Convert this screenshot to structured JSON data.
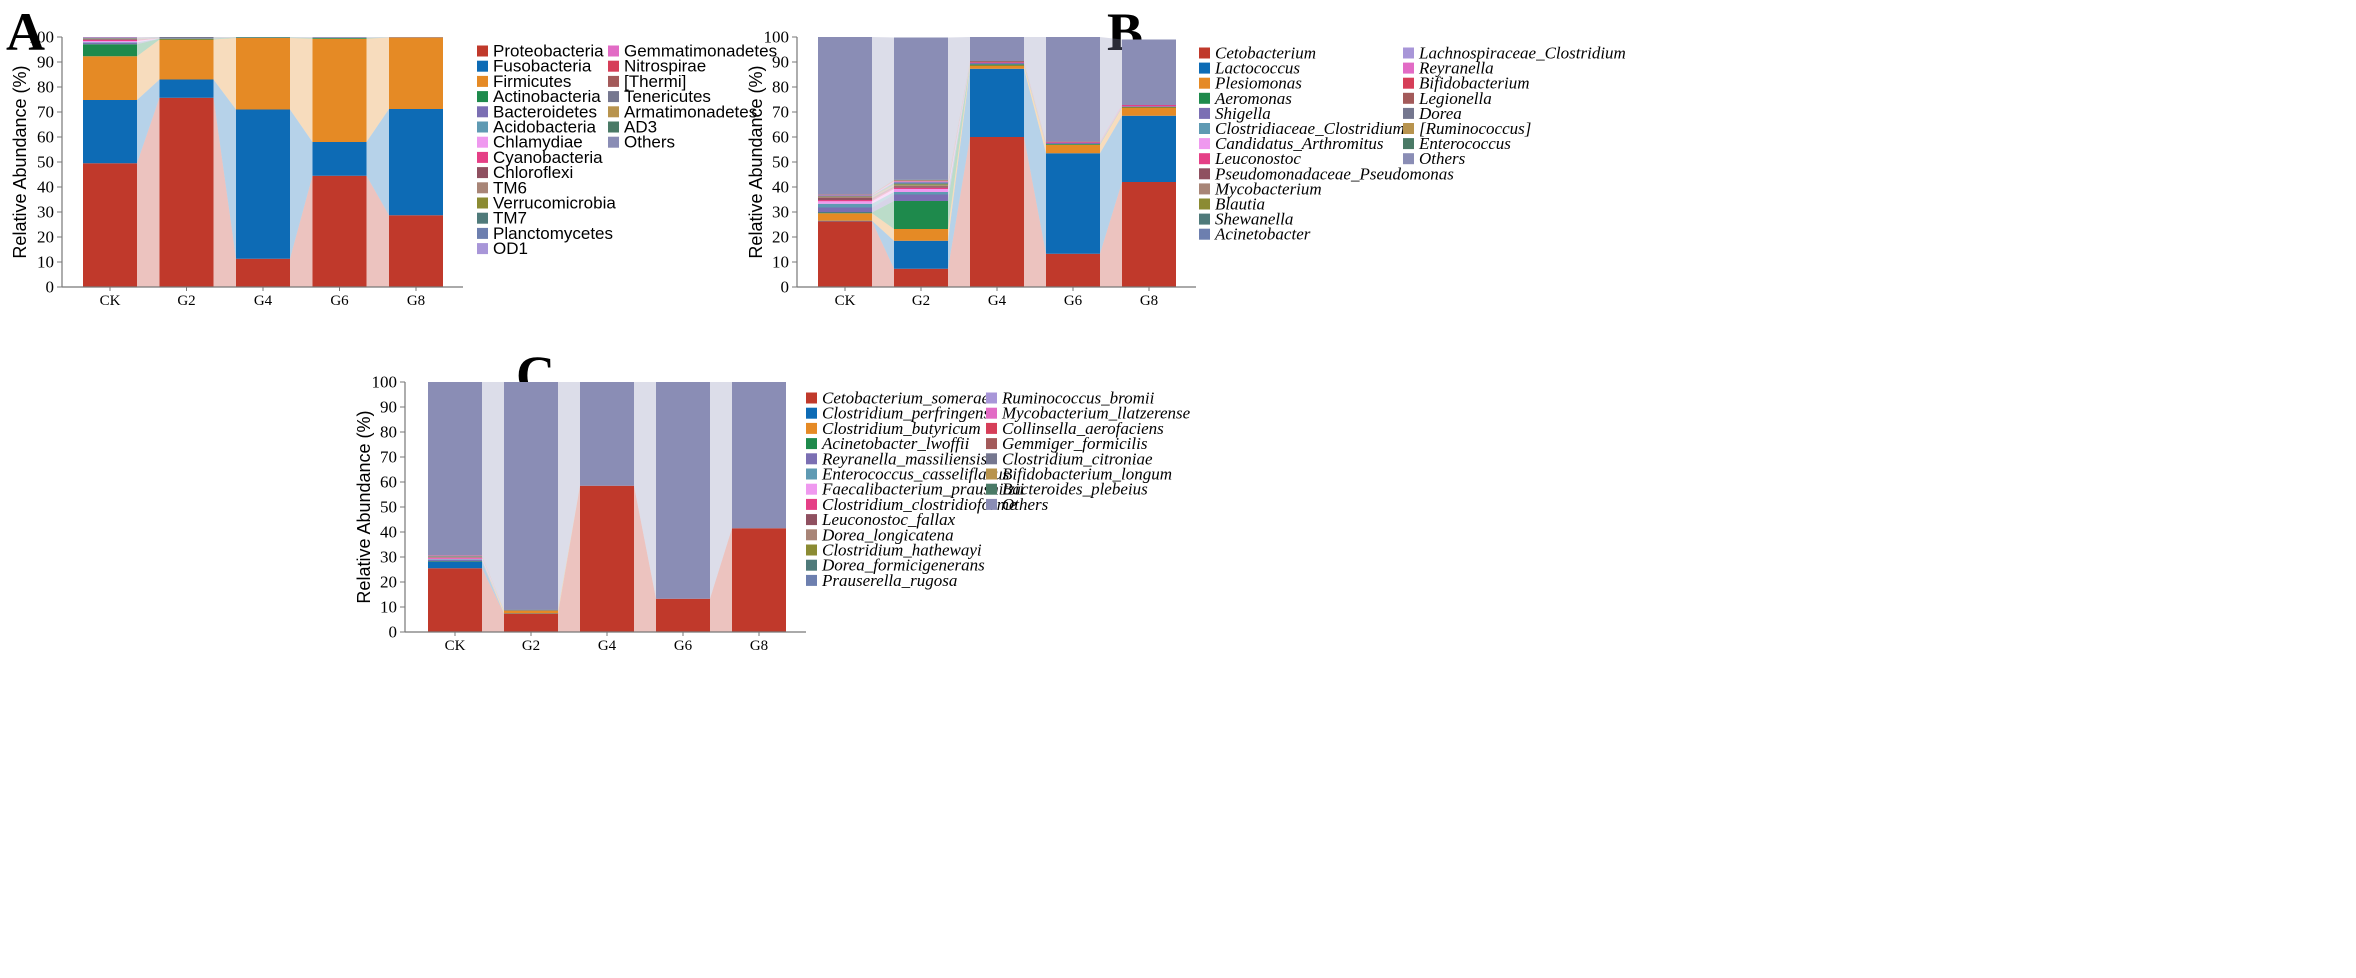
{
  "colors": {
    "palette": [
      "#c0392b",
      "#0d6bb5",
      "#e58a25",
      "#1e8a4c",
      "#7b6fb3",
      "#5f9ab3",
      "#ef99ef",
      "#e53f86",
      "#8f5060",
      "#a88577",
      "#8b8b33",
      "#4f7a7a",
      "#6d7faf",
      "#a896d8",
      "#e26bc5",
      "#d63e58",
      "#a35a5a",
      "#75778f",
      "#b8944e",
      "#4a7a66",
      "#8a8db5"
    ],
    "flow_alpha": 0.3
  },
  "chart_data": [
    {
      "panel": "A",
      "type": "bar",
      "stacked": true,
      "ylabel": "Relative Abundance (%)",
      "ylim": [
        0,
        100
      ],
      "yticks": [
        0,
        10,
        20,
        30,
        40,
        50,
        60,
        70,
        80,
        90,
        100
      ],
      "categories": [
        "CK",
        "G2",
        "G4",
        "G6",
        "G8"
      ],
      "legend_italic": false,
      "legend_columns": 2,
      "series": [
        {
          "name": "Proteobacteria",
          "values": [
            49.5,
            75.7,
            11.3,
            44.5,
            28.7
          ]
        },
        {
          "name": "Fusobacteria",
          "values": [
            25.3,
            7.3,
            59.7,
            13.5,
            42.5
          ]
        },
        {
          "name": "Firmicutes",
          "values": [
            17.5,
            16.0,
            28.6,
            41.3,
            28.6
          ]
        },
        {
          "name": "Actinobacteria",
          "values": [
            4.8,
            0.3,
            0.2,
            0.3,
            0.0
          ]
        },
        {
          "name": "Bacteroidetes",
          "values": [
            0.5,
            0.0,
            0.0,
            0.0,
            0.0
          ]
        },
        {
          "name": "Acidobacteria",
          "values": [
            0.3,
            0.1,
            0.0,
            0.0,
            0.0
          ]
        },
        {
          "name": "Chlamydiae",
          "values": [
            0.5,
            0.0,
            0.0,
            0.0,
            0.0
          ]
        },
        {
          "name": "Cyanobacteria",
          "values": [
            0.4,
            0.0,
            0.0,
            0.0,
            0.0
          ]
        },
        {
          "name": "Chloroflexi",
          "values": [
            0.3,
            0.1,
            0.0,
            0.0,
            0.0
          ]
        },
        {
          "name": "TM6",
          "values": [
            0.2,
            0.0,
            0.0,
            0.0,
            0.0
          ]
        },
        {
          "name": "Verrucomicrobia",
          "values": [
            0.1,
            0.0,
            0.0,
            0.0,
            0.0
          ]
        },
        {
          "name": "TM7",
          "values": [
            0.1,
            0.0,
            0.0,
            0.0,
            0.0
          ]
        },
        {
          "name": "Planctomycetes",
          "values": [
            0.1,
            0.0,
            0.0,
            0.0,
            0.0
          ]
        },
        {
          "name": "OD1",
          "values": [
            0.1,
            0.0,
            0.0,
            0.0,
            0.0
          ]
        },
        {
          "name": "Gemmatimonadetes",
          "values": [
            0.1,
            0.0,
            0.0,
            0.0,
            0.0
          ]
        },
        {
          "name": "Nitrospirae",
          "values": [
            0.0,
            0.0,
            0.0,
            0.0,
            0.0
          ]
        },
        {
          "name": "[Thermi]",
          "values": [
            0.0,
            0.0,
            0.0,
            0.0,
            0.0
          ]
        },
        {
          "name": "Tenericutes",
          "values": [
            0.0,
            0.5,
            0.1,
            0.1,
            0.1
          ]
        },
        {
          "name": "Armatimonadetes",
          "values": [
            0.0,
            0.0,
            0.0,
            0.0,
            0.0
          ]
        },
        {
          "name": "AD3",
          "values": [
            0.0,
            0.0,
            0.0,
            0.0,
            0.0
          ]
        },
        {
          "name": "Others",
          "values": [
            0.2,
            0.0,
            0.1,
            0.3,
            0.1
          ]
        }
      ]
    },
    {
      "panel": "B",
      "type": "bar",
      "stacked": true,
      "ylabel": "Relative Abundance (%)",
      "ylim": [
        0,
        100
      ],
      "yticks": [
        0,
        10,
        20,
        30,
        40,
        50,
        60,
        70,
        80,
        90,
        100
      ],
      "categories": [
        "CK",
        "G2",
        "G4",
        "G6",
        "G8"
      ],
      "legend_italic": true,
      "legend_columns": 2,
      "series": [
        {
          "name": "Cetobacterium",
          "values": [
            26.3,
            7.3,
            60.0,
            13.3,
            42.0
          ]
        },
        {
          "name": "Lactococcus",
          "values": [
            0.2,
            11.2,
            27.3,
            40.2,
            26.5
          ]
        },
        {
          "name": "Plesiomonas",
          "values": [
            3.0,
            4.7,
            1.3,
            3.4,
            3.3
          ]
        },
        {
          "name": "Aeromonas",
          "values": [
            0.3,
            11.2,
            0.5,
            0.3,
            0.2
          ]
        },
        {
          "name": "Shigella",
          "values": [
            2.0,
            2.6,
            0.5,
            0.5,
            0.3
          ]
        },
        {
          "name": "Clostridiaceae_Clostridium",
          "values": [
            1.5,
            1.0,
            0.0,
            0.0,
            0.0
          ]
        },
        {
          "name": "Candidatus_Arthromitus",
          "values": [
            1.0,
            1.2,
            0.0,
            0.0,
            0.0
          ]
        },
        {
          "name": "Leuconostoc",
          "values": [
            0.5,
            0.5,
            0.3,
            0.3,
            0.5
          ]
        },
        {
          "name": "Pseudomonadaceae_Pseudomonas",
          "values": [
            0.8,
            0.5,
            0.3,
            0.1,
            0.0
          ]
        },
        {
          "name": "Mycobacterium",
          "values": [
            0.6,
            0.5,
            0.2,
            0.1,
            0.0
          ]
        },
        {
          "name": "Blautia",
          "values": [
            0.1,
            0.4,
            0.0,
            0.0,
            0.0
          ]
        },
        {
          "name": "Shewanella",
          "values": [
            0.1,
            0.4,
            0.0,
            0.0,
            0.0
          ]
        },
        {
          "name": "Acinetobacter",
          "values": [
            0.2,
            0.3,
            0.0,
            0.0,
            0.0
          ]
        },
        {
          "name": "Lachnospiraceae_Clostridium",
          "values": [
            0.1,
            0.3,
            0.0,
            0.0,
            0.0
          ]
        },
        {
          "name": "Reyranella",
          "values": [
            0.1,
            0.2,
            0.0,
            0.0,
            0.0
          ]
        },
        {
          "name": "Bifidobacterium",
          "values": [
            0.1,
            0.2,
            0.0,
            0.0,
            0.0
          ]
        },
        {
          "name": "Legionella",
          "values": [
            0.1,
            0.1,
            0.0,
            0.0,
            0.0
          ]
        },
        {
          "name": "Dorea",
          "values": [
            0.1,
            0.1,
            0.0,
            0.0,
            0.0
          ]
        },
        {
          "name": "[Ruminococcus]",
          "values": [
            0.0,
            0.1,
            0.0,
            0.0,
            0.0
          ]
        },
        {
          "name": "Enterococcus",
          "values": [
            0.0,
            0.1,
            0.0,
            0.0,
            0.0
          ]
        },
        {
          "name": "Others",
          "values": [
            62.9,
            56.9,
            9.6,
            41.8,
            26.2
          ]
        }
      ]
    },
    {
      "panel": "C",
      "type": "bar",
      "stacked": true,
      "ylabel": "Relative Abundance (%)",
      "ylim": [
        0,
        100
      ],
      "yticks": [
        0,
        10,
        20,
        30,
        40,
        50,
        60,
        70,
        80,
        90,
        100
      ],
      "categories": [
        "CK",
        "G2",
        "G4",
        "G6",
        "G8"
      ],
      "legend_italic": true,
      "legend_columns": 2,
      "series": [
        {
          "name": "Cetobacterium_somerae",
          "values": [
            25.5,
            7.3,
            58.5,
            13.3,
            41.5
          ]
        },
        {
          "name": "Clostridium_perfringens",
          "values": [
            2.7,
            0.1,
            0.0,
            0.0,
            0.0
          ]
        },
        {
          "name": "Clostridium_butyricum",
          "values": [
            0.1,
            1.2,
            0.0,
            0.0,
            0.0
          ]
        },
        {
          "name": "Acinetobacter_lwoffii",
          "values": [
            0.1,
            0.1,
            0.0,
            0.0,
            0.0
          ]
        },
        {
          "name": "Reyranella_massiliensis",
          "values": [
            0.4,
            0.1,
            0.0,
            0.0,
            0.0
          ]
        },
        {
          "name": "Enterococcus_casseliflavus",
          "values": [
            0.3,
            0.1,
            0.0,
            0.0,
            0.0
          ]
        },
        {
          "name": "Faecalibacterium_prausnitzii",
          "values": [
            0.3,
            0.0,
            0.0,
            0.0,
            0.0
          ]
        },
        {
          "name": "Clostridium_clostridioforme",
          "values": [
            0.3,
            0.0,
            0.0,
            0.0,
            0.0
          ]
        },
        {
          "name": "Leuconostoc_fallax",
          "values": [
            0.2,
            0.0,
            0.0,
            0.0,
            0.0
          ]
        },
        {
          "name": "Dorea_longicatena",
          "values": [
            0.2,
            0.0,
            0.0,
            0.0,
            0.0
          ]
        },
        {
          "name": "Clostridium_hathewayi",
          "values": [
            0.1,
            0.0,
            0.0,
            0.0,
            0.0
          ]
        },
        {
          "name": "Dorea_formicigenerans",
          "values": [
            0.1,
            0.0,
            0.0,
            0.0,
            0.0
          ]
        },
        {
          "name": "Prauserella_rugosa",
          "values": [
            0.1,
            0.0,
            0.0,
            0.0,
            0.0
          ]
        },
        {
          "name": "Ruminococcus_bromii",
          "values": [
            0.1,
            0.0,
            0.0,
            0.0,
            0.0
          ]
        },
        {
          "name": "Mycobacterium_llatzerense",
          "values": [
            0.1,
            0.0,
            0.0,
            0.0,
            0.0
          ]
        },
        {
          "name": "Collinsella_aerofaciens",
          "values": [
            0.1,
            0.0,
            0.0,
            0.0,
            0.0
          ]
        },
        {
          "name": "Gemmiger_formicilis",
          "values": [
            0.0,
            0.0,
            0.0,
            0.0,
            0.0
          ]
        },
        {
          "name": "Clostridium_citroniae",
          "values": [
            0.1,
            0.1,
            0.0,
            0.0,
            0.0
          ]
        },
        {
          "name": "Bifidobacterium_longum",
          "values": [
            0.0,
            0.0,
            0.0,
            0.0,
            0.0
          ]
        },
        {
          "name": "Bacteroides_plebeius",
          "values": [
            0.0,
            0.0,
            0.0,
            0.0,
            0.0
          ]
        },
        {
          "name": "Others",
          "values": [
            69.2,
            91.0,
            41.5,
            86.7,
            58.5
          ]
        }
      ]
    }
  ]
}
